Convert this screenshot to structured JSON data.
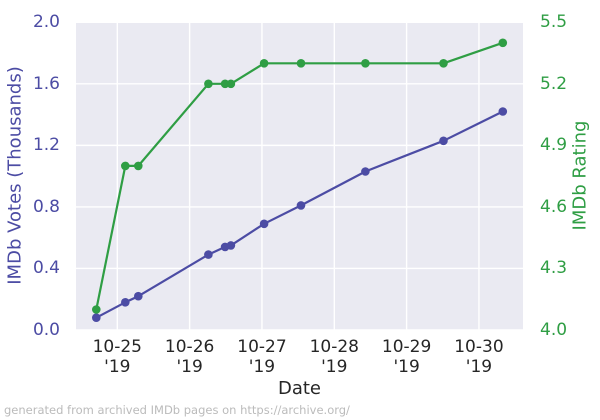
{
  "figure": {
    "background": "#ffffff",
    "plot_background": "#eaeaf2",
    "grid_color": "#ffffff",
    "footer": "generated from archived IMDb pages on https://archive.org/",
    "footer_color": "#bbbbbb",
    "x_tick_color": "#262626"
  },
  "chart_data": {
    "type": "line",
    "title": "",
    "grid": true,
    "legend_position": "none",
    "x_axis": {
      "label": "Date",
      "tick_days": [
        0,
        1,
        2,
        3,
        4,
        5
      ],
      "tick_labels": [
        "10-25",
        "10-26",
        "10-27",
        "10-28",
        "10-29",
        "10-30"
      ],
      "tick_year": "'19",
      "range_days": [
        -0.571,
        5.609
      ]
    },
    "y_left": {
      "label": "IMDb Votes (Thousands)",
      "color": "#4c4ca4",
      "ticks": [
        0.0,
        0.4,
        0.8,
        1.2,
        1.6,
        2.0
      ],
      "tick_labels": [
        "0.0",
        "0.4",
        "0.8",
        "1.2",
        "1.6",
        "2.0"
      ],
      "range": [
        0.0,
        2.0
      ]
    },
    "y_right": {
      "label": "IMDb Rating",
      "color": "#2f9e44",
      "ticks": [
        4.0,
        4.3,
        4.6,
        4.9,
        5.2,
        5.5
      ],
      "tick_labels": [
        "4.0",
        "4.3",
        "4.6",
        "4.9",
        "5.2",
        "5.5"
      ],
      "range": [
        4.0,
        5.5
      ]
    },
    "x_days": [
      -0.29,
      0.11,
      0.29,
      1.26,
      1.49,
      1.57,
      2.03,
      2.54,
      3.43,
      4.51,
      5.33
    ],
    "series": [
      {
        "name": "IMDb Votes (Thousands)",
        "axis": "left",
        "color": "#4c4ca4",
        "values": [
          0.08,
          0.18,
          0.22,
          0.49,
          0.54,
          0.55,
          0.69,
          0.81,
          1.03,
          1.23,
          1.42
        ]
      },
      {
        "name": "IMDb Rating",
        "axis": "right",
        "color": "#2f9e44",
        "values": [
          4.1,
          4.8,
          4.8,
          5.2,
          5.2,
          5.2,
          5.3,
          5.3,
          5.3,
          5.3,
          5.4
        ]
      }
    ]
  }
}
